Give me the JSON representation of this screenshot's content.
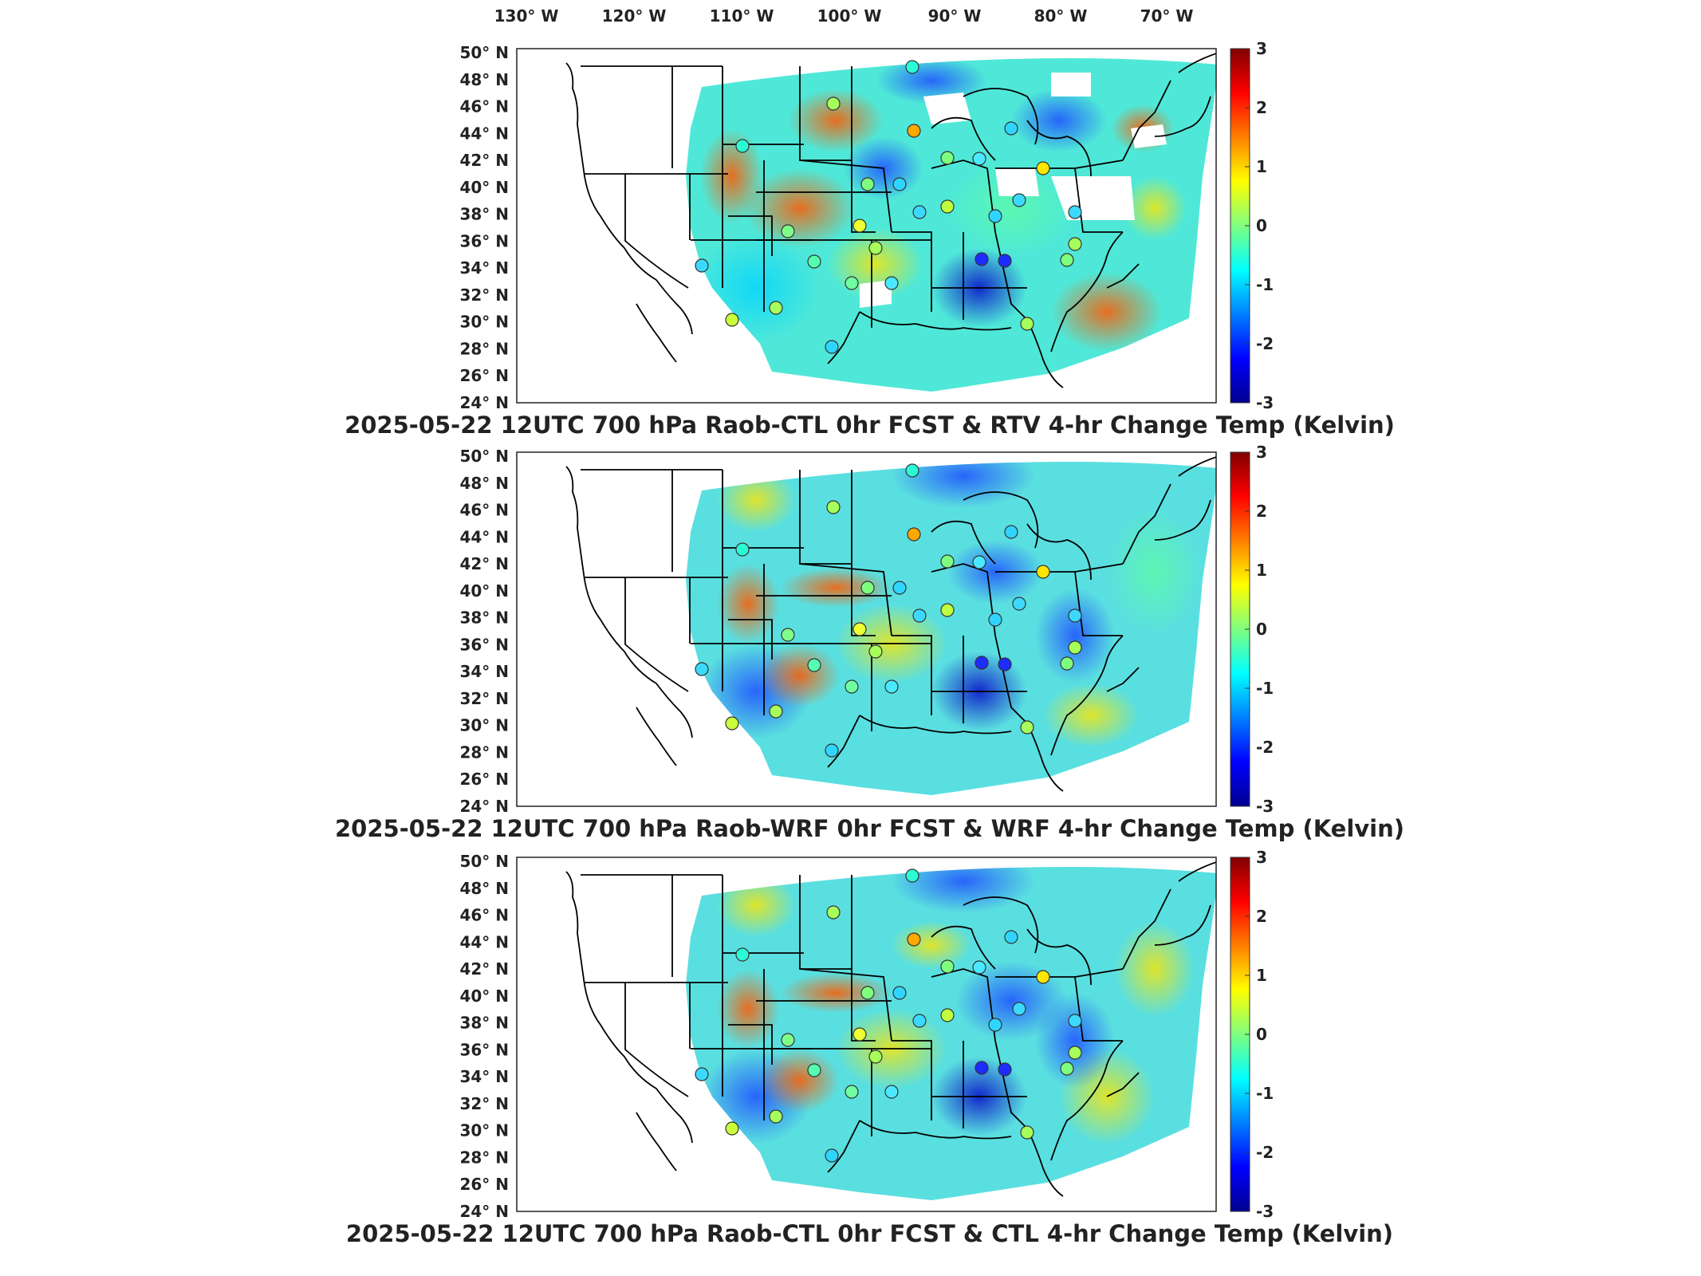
{
  "figure": {
    "lon_labels": [
      "130° W",
      "120° W",
      "110° W",
      "100° W",
      "90° W",
      "80° W",
      "70° W"
    ],
    "lat_labels": [
      "50° N",
      "48° N",
      "46° N",
      "44° N",
      "42° N",
      "40° N",
      "38° N",
      "36° N",
      "34° N",
      "32° N",
      "30° N",
      "28° N",
      "26° N",
      "24° N"
    ],
    "colorbar": {
      "ticks": [
        "3",
        "2",
        "1",
        "0",
        "-1",
        "-2",
        "-3"
      ],
      "range": [
        -3,
        3
      ],
      "colormap": "jet"
    },
    "panels": [
      {
        "title": "2025-05-22 12UTC 700 hPa Raob-CTL 0hr FCST & RTV 4-hr Change Temp (Kelvin)",
        "has_missing_data": true
      },
      {
        "title": "2025-05-22 12UTC 700 hPa Raob-WRF 0hr FCST & WRF 4-hr Change Temp (Kelvin)",
        "has_missing_data": false
      },
      {
        "title": "2025-05-22 12UTC 700 hPa Raob-CTL 0hr FCST & CTL 4-hr Change Temp (Kelvin)",
        "has_missing_data": false
      }
    ]
  }
}
